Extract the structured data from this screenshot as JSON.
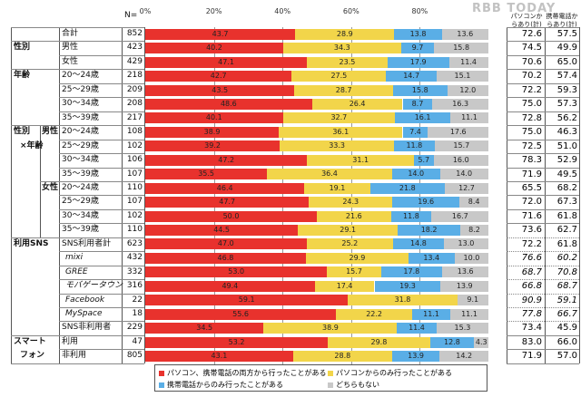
{
  "chart_data": {
    "type": "bar",
    "orientation": "horizontal",
    "stacked": true,
    "xlim": [
      0,
      100
    ],
    "x_ticks": [
      "0%",
      "20%",
      "40%",
      "60%",
      "80%"
    ],
    "n_label": "N=",
    "series": [
      {
        "name": "パソコン、携帯電話の両方から行ったことがある",
        "color": "#e8322d"
      },
      {
        "name": "パソコンからのみ行ったことがある",
        "color": "#f2d54a"
      },
      {
        "name": "携帯電話からのみ行ったことがある",
        "color": "#5aaee6"
      },
      {
        "name": "どちらもない",
        "color": "#c8c8c8"
      }
    ],
    "right_headers": [
      "パソコンからあり(計)",
      "携帯電話からあり(計)"
    ],
    "rows": [
      {
        "group": "",
        "sub": "",
        "label": "合計",
        "n": "852",
        "values": [
          43.7,
          28.9,
          13.8,
          13.6
        ],
        "pc": "72.6",
        "mobile": "57.5"
      },
      {
        "group": "性別",
        "sub": "",
        "label": "男性",
        "n": "423",
        "values": [
          40.2,
          34.3,
          9.7,
          15.8
        ],
        "pc": "74.5",
        "mobile": "49.9"
      },
      {
        "group": "",
        "sub": "",
        "label": "女性",
        "n": "429",
        "values": [
          47.1,
          23.5,
          17.9,
          11.4
        ],
        "pc": "70.6",
        "mobile": "65.0"
      },
      {
        "group": "年齢",
        "sub": "",
        "label": "20～24歳",
        "n": "218",
        "values": [
          42.7,
          27.5,
          14.7,
          15.1
        ],
        "pc": "70.2",
        "mobile": "57.4"
      },
      {
        "group": "",
        "sub": "",
        "label": "25～29歳",
        "n": "209",
        "values": [
          43.5,
          28.7,
          15.8,
          12.0
        ],
        "pc": "72.2",
        "mobile": "59.3"
      },
      {
        "group": "",
        "sub": "",
        "label": "30～34歳",
        "n": "208",
        "values": [
          48.6,
          26.4,
          8.7,
          16.3
        ],
        "pc": "75.0",
        "mobile": "57.3"
      },
      {
        "group": "",
        "sub": "",
        "label": "35～39歳",
        "n": "217",
        "values": [
          40.1,
          32.7,
          16.1,
          11.1
        ],
        "pc": "72.8",
        "mobile": "56.2"
      },
      {
        "group": "性別",
        "sub": "男性",
        "label": "20～24歳",
        "n": "108",
        "values": [
          38.9,
          36.1,
          7.4,
          17.6
        ],
        "pc": "75.0",
        "mobile": "46.3"
      },
      {
        "group": "×年齢",
        "sub": "",
        "label": "25～29歳",
        "n": "102",
        "values": [
          39.2,
          33.3,
          11.8,
          15.7
        ],
        "pc": "72.5",
        "mobile": "51.0"
      },
      {
        "group": "",
        "sub": "",
        "label": "30～34歳",
        "n": "106",
        "values": [
          47.2,
          31.1,
          5.7,
          16.0
        ],
        "pc": "78.3",
        "mobile": "52.9"
      },
      {
        "group": "",
        "sub": "",
        "label": "35～39歳",
        "n": "107",
        "values": [
          35.5,
          36.4,
          14.0,
          14.0
        ],
        "pc": "71.9",
        "mobile": "49.5"
      },
      {
        "group": "",
        "sub": "女性",
        "label": "20～24歳",
        "n": "110",
        "values": [
          46.4,
          19.1,
          21.8,
          12.7
        ],
        "pc": "65.5",
        "mobile": "68.2"
      },
      {
        "group": "",
        "sub": "",
        "label": "25～29歳",
        "n": "107",
        "values": [
          47.7,
          24.3,
          19.6,
          8.4
        ],
        "pc": "72.0",
        "mobile": "67.3"
      },
      {
        "group": "",
        "sub": "",
        "label": "30～34歳",
        "n": "102",
        "values": [
          50.0,
          21.6,
          11.8,
          16.7
        ],
        "pc": "71.6",
        "mobile": "61.8"
      },
      {
        "group": "",
        "sub": "",
        "label": "35～39歳",
        "n": "110",
        "values": [
          44.5,
          29.1,
          18.2,
          8.2
        ],
        "pc": "73.6",
        "mobile": "62.7"
      },
      {
        "group": "利用SNS",
        "sub": "",
        "label": "SNS利用者計",
        "n": "623",
        "values": [
          47.0,
          25.2,
          14.8,
          13.0
        ],
        "pc": "72.2",
        "mobile": "61.8"
      },
      {
        "group": "",
        "sub": "",
        "label": "mixi",
        "n": "432",
        "values": [
          46.8,
          29.9,
          13.4,
          10.0
        ],
        "pc": "76.6",
        "mobile": "60.2",
        "italic": true
      },
      {
        "group": "",
        "sub": "",
        "label": "GREE",
        "n": "332",
        "values": [
          53.0,
          15.7,
          17.8,
          13.6
        ],
        "pc": "68.7",
        "mobile": "70.8",
        "italic": true
      },
      {
        "group": "",
        "sub": "",
        "label": "モバゲータウン",
        "n": "316",
        "values": [
          49.4,
          17.4,
          19.3,
          13.9
        ],
        "pc": "66.8",
        "mobile": "68.7",
        "italic": true
      },
      {
        "group": "",
        "sub": "",
        "label": "Facebook",
        "n": "22",
        "values": [
          59.1,
          31.8,
          0,
          9.1
        ],
        "pc": "90.9",
        "mobile": "59.1",
        "italic": true
      },
      {
        "group": "",
        "sub": "",
        "label": "MySpace",
        "n": "18",
        "values": [
          55.6,
          22.2,
          11.1,
          11.1
        ],
        "pc": "77.8",
        "mobile": "66.7",
        "italic": true
      },
      {
        "group": "",
        "sub": "",
        "label": "SNS非利用者",
        "n": "229",
        "values": [
          34.5,
          38.9,
          11.4,
          15.3
        ],
        "pc": "73.4",
        "mobile": "45.9"
      },
      {
        "group": "スマート",
        "sub": "",
        "label": "利用",
        "n": "47",
        "values": [
          53.2,
          29.8,
          12.8,
          4.3
        ],
        "pc": "83.0",
        "mobile": "66.0"
      },
      {
        "group": "フォン",
        "sub": "",
        "label": "非利用",
        "n": "805",
        "values": [
          43.1,
          28.8,
          13.9,
          14.2
        ],
        "pc": "71.9",
        "mobile": "57.0"
      }
    ]
  },
  "watermark": "RBB TODAY"
}
